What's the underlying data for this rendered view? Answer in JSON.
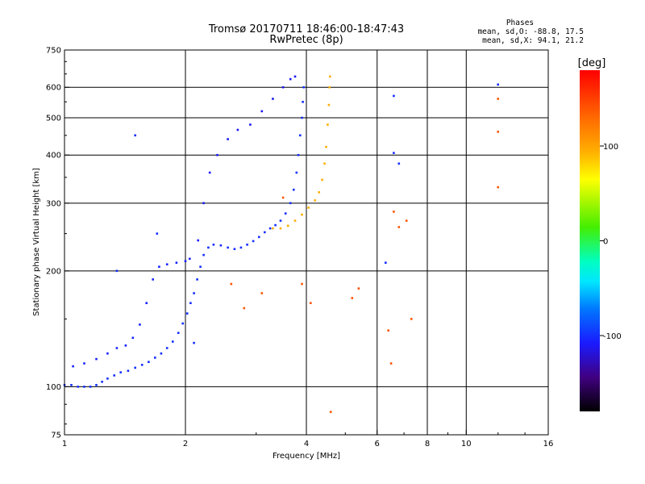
{
  "chart_data": {
    "type": "scatter",
    "title": "Tromsø 20170711 18:46:00-18:47:43",
    "subtitle": "RwPretec (8p)",
    "xlabel": "Frequency [MHz]",
    "ylabel": "Stationary phase Virtual Height [km]",
    "x_scale": "log",
    "y_scale": "log",
    "xlim": [
      1,
      16
    ],
    "ylim": [
      75,
      750
    ],
    "x_ticks": [
      1,
      2,
      4,
      6,
      8,
      10,
      16
    ],
    "x_tick_labels": [
      "1",
      "2",
      "4",
      "6",
      "8",
      "10",
      "16"
    ],
    "y_ticks": [
      75,
      100,
      200,
      300,
      400,
      500,
      600,
      750
    ],
    "y_tick_labels": [
      "75",
      "100",
      "200",
      "300",
      "400",
      "500",
      "600",
      "750"
    ],
    "x_grid": [
      2,
      4,
      6,
      8,
      10
    ],
    "y_grid": [
      100,
      200,
      300,
      400,
      500,
      600
    ],
    "grid": true,
    "stats": {
      "header": "Phases",
      "line_o": "mean, sd,O: -88.8, 17.5",
      "line_x": "mean, sd,X:  94.1, 21.2"
    },
    "colorbar": {
      "label": "[deg]",
      "range": [
        -180,
        180
      ],
      "ticks": [
        100,
        0,
        -100
      ],
      "tick_labels": [
        "100",
        "0",
        "-100"
      ],
      "placement": "right"
    },
    "series": [
      {
        "trace": "o-mode E/F1 trace",
        "phase": -100,
        "points": [
          [
            1.0,
            101
          ],
          [
            1.04,
            101
          ],
          [
            1.08,
            100
          ],
          [
            1.12,
            100
          ],
          [
            1.16,
            100
          ],
          [
            1.2,
            101
          ],
          [
            1.24,
            103
          ],
          [
            1.28,
            105
          ],
          [
            1.33,
            107
          ],
          [
            1.38,
            109
          ],
          [
            1.44,
            110
          ],
          [
            1.5,
            112
          ],
          [
            1.56,
            114
          ],
          [
            1.62,
            116
          ],
          [
            1.68,
            119
          ],
          [
            1.74,
            122
          ],
          [
            1.8,
            126
          ],
          [
            1.86,
            131
          ],
          [
            1.92,
            138
          ],
          [
            1.97,
            146
          ],
          [
            2.02,
            155
          ],
          [
            2.06,
            165
          ],
          [
            2.1,
            175
          ],
          [
            2.14,
            190
          ],
          [
            2.18,
            205
          ],
          [
            2.22,
            220
          ],
          [
            2.28,
            230
          ],
          [
            2.35,
            234
          ],
          [
            2.45,
            233
          ],
          [
            2.55,
            230
          ],
          [
            2.65,
            228
          ],
          [
            2.75,
            230
          ],
          [
            2.85,
            234
          ],
          [
            2.95,
            239
          ],
          [
            3.05,
            245
          ],
          [
            3.15,
            252
          ],
          [
            3.25,
            258
          ],
          [
            3.35,
            263
          ],
          [
            3.45,
            270
          ],
          [
            3.55,
            282
          ],
          [
            3.65,
            300
          ],
          [
            3.72,
            325
          ],
          [
            3.78,
            360
          ],
          [
            3.82,
            400
          ],
          [
            3.86,
            450
          ],
          [
            3.9,
            500
          ],
          [
            3.92,
            550
          ],
          [
            3.94,
            600
          ]
        ]
      },
      {
        "trace": "o-mode upper cusp",
        "phase": -110,
        "points": [
          [
            2.15,
            240
          ],
          [
            2.22,
            300
          ],
          [
            2.3,
            360
          ],
          [
            2.4,
            400
          ],
          [
            2.55,
            440
          ],
          [
            2.7,
            465
          ],
          [
            2.9,
            480
          ],
          [
            3.1,
            520
          ],
          [
            3.3,
            560
          ],
          [
            3.5,
            600
          ],
          [
            3.65,
            630
          ],
          [
            3.75,
            640
          ]
        ]
      },
      {
        "trace": "o-mode low trace",
        "phase": -105,
        "points": [
          [
            1.05,
            113
          ],
          [
            1.12,
            115
          ],
          [
            1.2,
            118
          ],
          [
            1.28,
            122
          ],
          [
            1.35,
            126
          ],
          [
            1.42,
            128
          ],
          [
            1.48,
            134
          ],
          [
            1.54,
            145
          ],
          [
            1.6,
            165
          ],
          [
            1.66,
            190
          ],
          [
            1.72,
            205
          ],
          [
            1.8,
            208
          ],
          [
            1.9,
            210
          ],
          [
            2.0,
            212
          ],
          [
            2.05,
            215
          ]
        ]
      },
      {
        "trace": "x-mode F trace",
        "phase": 95,
        "points": [
          [
            3.3,
            258
          ],
          [
            3.45,
            258
          ],
          [
            3.6,
            262
          ],
          [
            3.75,
            270
          ],
          [
            3.9,
            280
          ],
          [
            4.05,
            292
          ],
          [
            4.2,
            305
          ],
          [
            4.3,
            320
          ],
          [
            4.38,
            345
          ],
          [
            4.44,
            380
          ],
          [
            4.48,
            420
          ],
          [
            4.52,
            480
          ],
          [
            4.55,
            540
          ],
          [
            4.57,
            600
          ],
          [
            4.58,
            640
          ]
        ]
      },
      {
        "trace": "scattered echoes",
        "phase": 140,
        "points": [
          [
            2.6,
            185
          ],
          [
            2.8,
            160
          ],
          [
            3.1,
            175
          ],
          [
            3.5,
            310
          ],
          [
            3.9,
            185
          ],
          [
            4.1,
            165
          ],
          [
            4.6,
            86
          ],
          [
            5.2,
            170
          ],
          [
            5.4,
            180
          ],
          [
            6.4,
            140
          ],
          [
            6.5,
            115
          ],
          [
            6.6,
            285
          ],
          [
            6.8,
            260
          ],
          [
            7.1,
            270
          ],
          [
            7.3,
            150
          ],
          [
            12.0,
            330
          ],
          [
            12.0,
            560
          ],
          [
            12.0,
            460
          ]
        ]
      },
      {
        "trace": "scattered echoes (blue)",
        "phase": -100,
        "points": [
          [
            1.5,
            450
          ],
          [
            1.35,
            200
          ],
          [
            1.7,
            250
          ],
          [
            6.3,
            210
          ],
          [
            6.6,
            570
          ],
          [
            6.8,
            380
          ],
          [
            12.0,
            610
          ],
          [
            6.6,
            405
          ],
          [
            2.1,
            130
          ]
        ]
      }
    ]
  }
}
